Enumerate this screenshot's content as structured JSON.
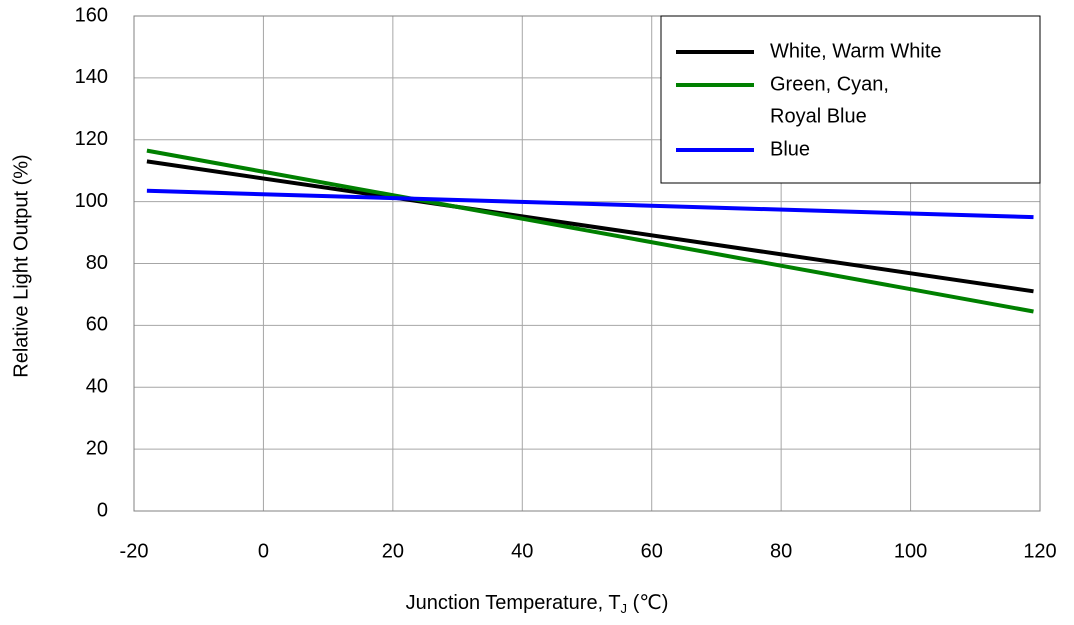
{
  "chart_data": {
    "type": "line",
    "title": "",
    "xlabel_prefix": "Junction Temperature, T",
    "xlabel_subscript": "J",
    "xlabel_suffix": " (℃)",
    "ylabel": "Relative Light Output (%)",
    "xlim": [
      -20,
      120
    ],
    "ylim": [
      0,
      160
    ],
    "x_ticks": [
      "-20",
      "0",
      "20",
      "40",
      "60",
      "80",
      "100",
      "120"
    ],
    "y_ticks": [
      "0",
      "20",
      "40",
      "60",
      "80",
      "100",
      "120",
      "140",
      "160"
    ],
    "grid": true,
    "legend_position": "top-right",
    "legend": {
      "entries": [
        {
          "series_index": 0,
          "lines": [
            "White, Warm White"
          ]
        },
        {
          "series_index": 1,
          "lines": [
            "Green, Cyan,",
            "Royal Blue"
          ]
        },
        {
          "series_index": 2,
          "lines": [
            "Blue"
          ]
        }
      ]
    },
    "series": [
      {
        "name": "White, Warm White",
        "color": "#000000",
        "x": [
          -18,
          119
        ],
        "y": [
          113,
          71
        ]
      },
      {
        "name": "Green, Cyan, Royal Blue",
        "color": "#008000",
        "x": [
          -18,
          119
        ],
        "y": [
          116.5,
          64.5
        ]
      },
      {
        "name": "Blue",
        "color": "#0000ff",
        "x": [
          -18,
          119
        ],
        "y": [
          103.5,
          95
        ]
      }
    ]
  }
}
